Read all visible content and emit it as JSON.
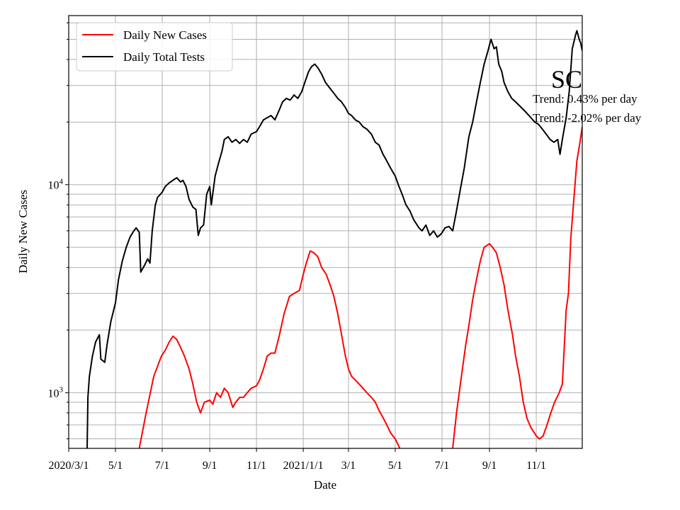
{
  "chart_data": {
    "type": "line",
    "title": "SC",
    "xlabel": "Date",
    "ylabel": "Daily New Cases",
    "yscale": "log",
    "ylim": [
      540,
      65000
    ],
    "xlim": [
      "2020-03-01",
      "2021-12-31"
    ],
    "grid": true,
    "legend_position": "top-left",
    "x_ticks": [
      {
        "date": "2020-03-01",
        "label": "2020/3/1"
      },
      {
        "date": "2020-05-01",
        "label": "5/1"
      },
      {
        "date": "2020-07-01",
        "label": "7/1"
      },
      {
        "date": "2020-09-01",
        "label": "9/1"
      },
      {
        "date": "2020-11-01",
        "label": "11/1"
      },
      {
        "date": "2021-01-01",
        "label": "2021/1/1"
      },
      {
        "date": "2021-03-01",
        "label": "3/1"
      },
      {
        "date": "2021-05-01",
        "label": "5/1"
      },
      {
        "date": "2021-07-01",
        "label": "7/1"
      },
      {
        "date": "2021-09-01",
        "label": "9/1"
      },
      {
        "date": "2021-11-01",
        "label": "11/1"
      }
    ],
    "y_ticks": [
      {
        "value": 1000,
        "base": "10",
        "exp": "3"
      },
      {
        "value": 10000,
        "base": "10",
        "exp": "4"
      }
    ],
    "annotations": [
      "Trend: 0.43% per day",
      "Trend: -2.02% per day"
    ],
    "series": [
      {
        "name": "Daily New Cases",
        "color": "#ff0000",
        "points": [
          [
            "2020-06-01",
            540
          ],
          [
            "2020-06-10",
            800
          ],
          [
            "2020-06-20",
            1200
          ],
          [
            "2020-06-30",
            1500
          ],
          [
            "2020-07-05",
            1600
          ],
          [
            "2020-07-10",
            1750
          ],
          [
            "2020-07-15",
            1870
          ],
          [
            "2020-07-20",
            1800
          ],
          [
            "2020-07-25",
            1650
          ],
          [
            "2020-07-30",
            1500
          ],
          [
            "2020-08-05",
            1300
          ],
          [
            "2020-08-10",
            1100
          ],
          [
            "2020-08-15",
            900
          ],
          [
            "2020-08-20",
            800
          ],
          [
            "2020-08-25",
            900
          ],
          [
            "2020-09-01",
            920
          ],
          [
            "2020-09-05",
            880
          ],
          [
            "2020-09-10",
            1000
          ],
          [
            "2020-09-15",
            950
          ],
          [
            "2020-09-20",
            1050
          ],
          [
            "2020-09-25",
            1000
          ],
          [
            "2020-10-01",
            850
          ],
          [
            "2020-10-05",
            900
          ],
          [
            "2020-10-10",
            950
          ],
          [
            "2020-10-15",
            950
          ],
          [
            "2020-10-20",
            1000
          ],
          [
            "2020-10-25",
            1050
          ],
          [
            "2020-11-01",
            1080
          ],
          [
            "2020-11-05",
            1150
          ],
          [
            "2020-11-10",
            1300
          ],
          [
            "2020-11-15",
            1500
          ],
          [
            "2020-11-20",
            1550
          ],
          [
            "2020-11-25",
            1550
          ],
          [
            "2020-12-01",
            1900
          ],
          [
            "2020-12-07",
            2400
          ],
          [
            "2020-12-14",
            2900
          ],
          [
            "2020-12-20",
            3000
          ],
          [
            "2020-12-27",
            3100
          ],
          [
            "2021-01-01",
            3700
          ],
          [
            "2021-01-05",
            4200
          ],
          [
            "2021-01-10",
            4800
          ],
          [
            "2021-01-15",
            4700
          ],
          [
            "2021-01-20",
            4500
          ],
          [
            "2021-01-25",
            4000
          ],
          [
            "2021-01-31",
            3700
          ],
          [
            "2021-02-05",
            3300
          ],
          [
            "2021-02-10",
            2900
          ],
          [
            "2021-02-15",
            2400
          ],
          [
            "2021-02-20",
            1900
          ],
          [
            "2021-02-25",
            1500
          ],
          [
            "2021-03-01",
            1300
          ],
          [
            "2021-03-05",
            1200
          ],
          [
            "2021-03-10",
            1150
          ],
          [
            "2021-03-15",
            1100
          ],
          [
            "2021-03-20",
            1050
          ],
          [
            "2021-03-25",
            1000
          ],
          [
            "2021-03-31",
            950
          ],
          [
            "2021-04-05",
            900
          ],
          [
            "2021-04-10",
            820
          ],
          [
            "2021-04-15",
            760
          ],
          [
            "2021-04-20",
            700
          ],
          [
            "2021-04-25",
            640
          ],
          [
            "2021-05-01",
            600
          ],
          [
            "2021-05-07",
            540
          ],
          [
            "2021-07-15",
            540
          ],
          [
            "2021-07-20",
            800
          ],
          [
            "2021-07-25",
            1100
          ],
          [
            "2021-08-01",
            1700
          ],
          [
            "2021-08-05",
            2100
          ],
          [
            "2021-08-10",
            2800
          ],
          [
            "2021-08-15",
            3500
          ],
          [
            "2021-08-20",
            4300
          ],
          [
            "2021-08-25",
            5000
          ],
          [
            "2021-09-01",
            5200
          ],
          [
            "2021-09-05",
            5000
          ],
          [
            "2021-09-10",
            4700
          ],
          [
            "2021-09-15",
            4000
          ],
          [
            "2021-09-20",
            3300
          ],
          [
            "2021-09-25",
            2500
          ],
          [
            "2021-10-01",
            1900
          ],
          [
            "2021-10-05",
            1500
          ],
          [
            "2021-10-10",
            1200
          ],
          [
            "2021-10-15",
            900
          ],
          [
            "2021-10-20",
            750
          ],
          [
            "2021-10-25",
            680
          ],
          [
            "2021-11-01",
            620
          ],
          [
            "2021-11-05",
            600
          ],
          [
            "2021-11-10",
            620
          ],
          [
            "2021-11-15",
            700
          ],
          [
            "2021-11-20",
            800
          ],
          [
            "2021-11-25",
            900
          ],
          [
            "2021-12-01",
            1000
          ],
          [
            "2021-12-05",
            1100
          ],
          [
            "2021-12-10",
            2500
          ],
          [
            "2021-12-13",
            3000
          ],
          [
            "2021-12-16",
            5500
          ],
          [
            "2021-12-20",
            8500
          ],
          [
            "2021-12-24",
            13000
          ],
          [
            "2021-12-28",
            16000
          ],
          [
            "2021-12-31",
            19000
          ]
        ]
      },
      {
        "name": "Daily Total Tests",
        "color": "#000000",
        "points": [
          [
            "2020-03-25",
            540
          ],
          [
            "2020-03-26",
            950
          ],
          [
            "2020-03-28",
            1200
          ],
          [
            "2020-04-01",
            1500
          ],
          [
            "2020-04-05",
            1750
          ],
          [
            "2020-04-10",
            1900
          ],
          [
            "2020-04-12",
            1450
          ],
          [
            "2020-04-17",
            1400
          ],
          [
            "2020-04-20",
            1700
          ],
          [
            "2020-04-25",
            2200
          ],
          [
            "2020-05-01",
            2700
          ],
          [
            "2020-05-05",
            3500
          ],
          [
            "2020-05-10",
            4300
          ],
          [
            "2020-05-15",
            5000
          ],
          [
            "2020-05-20",
            5600
          ],
          [
            "2020-05-25",
            6000
          ],
          [
            "2020-05-28",
            6200
          ],
          [
            "2020-06-01",
            5900
          ],
          [
            "2020-06-03",
            3800
          ],
          [
            "2020-06-08",
            4100
          ],
          [
            "2020-06-12",
            4400
          ],
          [
            "2020-06-15",
            4200
          ],
          [
            "2020-06-18",
            6000
          ],
          [
            "2020-06-22",
            8000
          ],
          [
            "2020-06-25",
            8700
          ],
          [
            "2020-07-01",
            9200
          ],
          [
            "2020-07-05",
            9800
          ],
          [
            "2020-07-10",
            10200
          ],
          [
            "2020-07-15",
            10500
          ],
          [
            "2020-07-20",
            10800
          ],
          [
            "2020-07-25",
            10300
          ],
          [
            "2020-07-28",
            10500
          ],
          [
            "2020-08-01",
            9800
          ],
          [
            "2020-08-05",
            8500
          ],
          [
            "2020-08-10",
            7800
          ],
          [
            "2020-08-14",
            7600
          ],
          [
            "2020-08-17",
            5700
          ],
          [
            "2020-08-20",
            6200
          ],
          [
            "2020-08-24",
            6400
          ],
          [
            "2020-08-28",
            9000
          ],
          [
            "2020-09-01",
            9800
          ],
          [
            "2020-09-03",
            8000
          ],
          [
            "2020-09-08",
            11000
          ],
          [
            "2020-09-12",
            12500
          ],
          [
            "2020-09-17",
            14500
          ],
          [
            "2020-09-20",
            16500
          ],
          [
            "2020-09-25",
            17000
          ],
          [
            "2020-09-30",
            16000
          ],
          [
            "2020-10-05",
            16500
          ],
          [
            "2020-10-10",
            15800
          ],
          [
            "2020-10-15",
            16500
          ],
          [
            "2020-10-20",
            16000
          ],
          [
            "2020-10-25",
            17500
          ],
          [
            "2020-11-01",
            18000
          ],
          [
            "2020-11-05",
            19000
          ],
          [
            "2020-11-10",
            20500
          ],
          [
            "2020-11-15",
            21000
          ],
          [
            "2020-11-20",
            21500
          ],
          [
            "2020-11-25",
            20500
          ],
          [
            "2020-12-01",
            23000
          ],
          [
            "2020-12-05",
            25000
          ],
          [
            "2020-12-10",
            26000
          ],
          [
            "2020-12-15",
            25500
          ],
          [
            "2020-12-20",
            27000
          ],
          [
            "2020-12-25",
            26000
          ],
          [
            "2020-12-30",
            28000
          ],
          [
            "2021-01-03",
            31000
          ],
          [
            "2021-01-08",
            35000
          ],
          [
            "2021-01-12",
            37000
          ],
          [
            "2021-01-16",
            38000
          ],
          [
            "2021-01-20",
            36500
          ],
          [
            "2021-01-25",
            34000
          ],
          [
            "2021-01-30",
            31000
          ],
          [
            "2021-02-05",
            29000
          ],
          [
            "2021-02-10",
            27500
          ],
          [
            "2021-02-15",
            26000
          ],
          [
            "2021-02-20",
            25000
          ],
          [
            "2021-02-25",
            23500
          ],
          [
            "2021-03-01",
            22000
          ],
          [
            "2021-03-05",
            21500
          ],
          [
            "2021-03-10",
            20500
          ],
          [
            "2021-03-15",
            20000
          ],
          [
            "2021-03-20",
            19000
          ],
          [
            "2021-03-25",
            18500
          ],
          [
            "2021-03-31",
            17500
          ],
          [
            "2021-04-05",
            16000
          ],
          [
            "2021-04-10",
            15500
          ],
          [
            "2021-04-15",
            14000
          ],
          [
            "2021-04-20",
            13000
          ],
          [
            "2021-04-25",
            12000
          ],
          [
            "2021-05-01",
            11000
          ],
          [
            "2021-05-05",
            10000
          ],
          [
            "2021-05-10",
            9000
          ],
          [
            "2021-05-15",
            8000
          ],
          [
            "2021-05-20",
            7500
          ],
          [
            "2021-05-25",
            6800
          ],
          [
            "2021-06-01",
            6200
          ],
          [
            "2021-06-05",
            6000
          ],
          [
            "2021-06-10",
            6400
          ],
          [
            "2021-06-15",
            5700
          ],
          [
            "2021-06-20",
            6000
          ],
          [
            "2021-06-25",
            5600
          ],
          [
            "2021-06-30",
            5800
          ],
          [
            "2021-07-05",
            6200
          ],
          [
            "2021-07-10",
            6300
          ],
          [
            "2021-07-15",
            6000
          ],
          [
            "2021-07-20",
            7500
          ],
          [
            "2021-07-25",
            9500
          ],
          [
            "2021-07-30",
            12000
          ],
          [
            "2021-08-05",
            17000
          ],
          [
            "2021-08-10",
            20000
          ],
          [
            "2021-08-15",
            25000
          ],
          [
            "2021-08-20",
            31000
          ],
          [
            "2021-08-25",
            38000
          ],
          [
            "2021-08-30",
            44000
          ],
          [
            "2021-09-01",
            47000
          ],
          [
            "2021-09-03",
            50000
          ],
          [
            "2021-09-07",
            45000
          ],
          [
            "2021-09-10",
            46000
          ],
          [
            "2021-09-13",
            38000
          ],
          [
            "2021-09-17",
            35000
          ],
          [
            "2021-09-20",
            31000
          ],
          [
            "2021-09-25",
            28000
          ],
          [
            "2021-09-30",
            26000
          ],
          [
            "2021-10-05",
            25000
          ],
          [
            "2021-10-10",
            24000
          ],
          [
            "2021-10-15",
            23000
          ],
          [
            "2021-10-20",
            22000
          ],
          [
            "2021-10-25",
            21000
          ],
          [
            "2021-10-30",
            20000
          ],
          [
            "2021-11-04",
            19500
          ],
          [
            "2021-11-09",
            18500
          ],
          [
            "2021-11-14",
            17500
          ],
          [
            "2021-11-19",
            16500
          ],
          [
            "2021-11-24",
            16000
          ],
          [
            "2021-11-29",
            16500
          ],
          [
            "2021-12-02",
            14000
          ],
          [
            "2021-12-05",
            16500
          ],
          [
            "2021-12-10",
            21000
          ],
          [
            "2021-12-14",
            28000
          ],
          [
            "2021-12-18",
            45000
          ],
          [
            "2021-12-22",
            52000
          ],
          [
            "2021-12-24",
            55000
          ],
          [
            "2021-12-27",
            50000
          ],
          [
            "2021-12-29",
            48000
          ],
          [
            "2021-12-31",
            44000
          ]
        ]
      }
    ]
  }
}
